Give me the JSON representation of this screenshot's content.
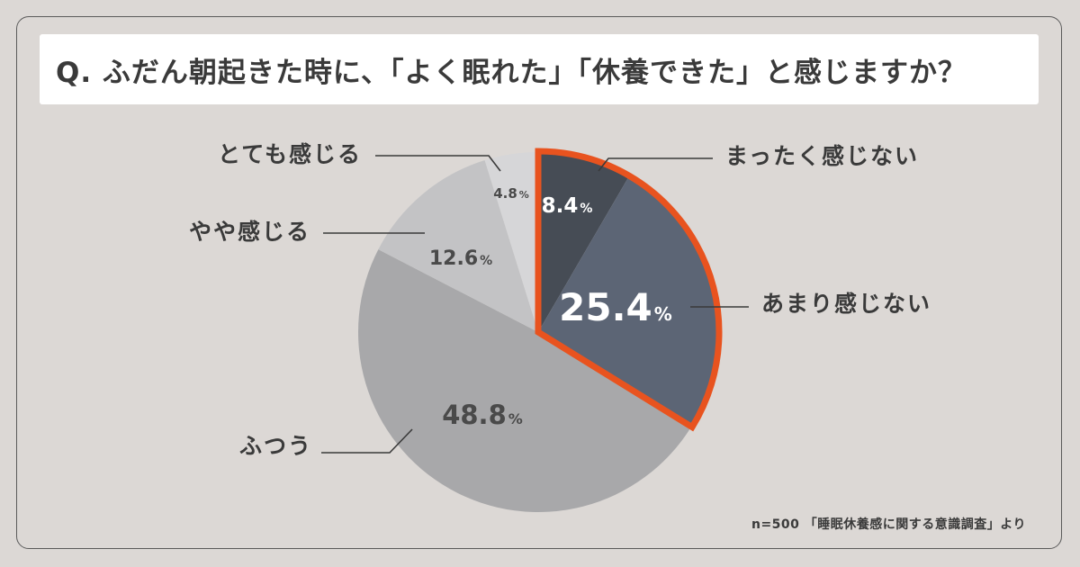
{
  "title": "Q. ふだん朝起きた時に、「よく眠れた」「休養できた」と感じますか？",
  "source": "n=500 「睡眠休養感に関する意識調査」より",
  "colors": {
    "background": "#dcd8d5",
    "highlight_border": "#e8531f"
  },
  "chart_data": {
    "type": "pie",
    "start": "12 o'clock",
    "direction": "clockwise",
    "percent_unit": "%",
    "slices": [
      {
        "label": "まったく感じない",
        "value": 8.4,
        "value_label": "8.4",
        "color": "#464c55",
        "text_color": "#ffffff",
        "highlighted": true
      },
      {
        "label": "あまり感じない",
        "value": 25.4,
        "value_label": "25.4",
        "color": "#5c6575",
        "text_color": "#ffffff",
        "highlighted": true
      },
      {
        "label": "ふつう",
        "value": 48.8,
        "value_label": "48.8",
        "color": "#a8a8aa",
        "text_color": "#4a4a4a",
        "highlighted": false
      },
      {
        "label": "やや感じる",
        "value": 12.6,
        "value_label": "12.6",
        "color": "#c3c3c5",
        "text_color": "#4a4a4a",
        "highlighted": false
      },
      {
        "label": "とても感じる",
        "value": 4.8,
        "value_label": "4.8",
        "color": "#d6d6d8",
        "text_color": "#4a4a4a",
        "highlighted": false
      }
    ]
  }
}
